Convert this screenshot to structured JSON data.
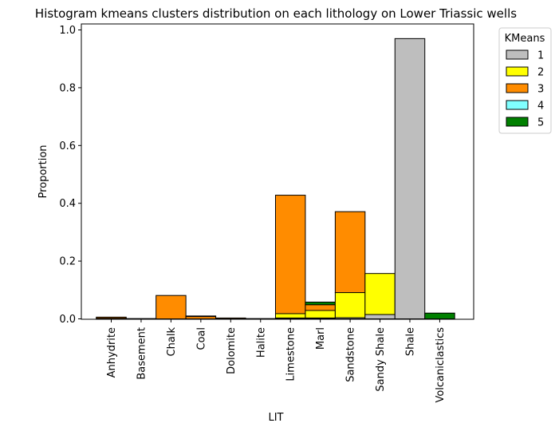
{
  "chart_data": {
    "type": "bar",
    "stacked": true,
    "title": "Histogram kmeans clusters distribution on each lithology on Lower Triassic wells",
    "xlabel": "LIT",
    "ylabel": "Proportion",
    "ylim": [
      0,
      1.02
    ],
    "yticks": [
      "0.0",
      "0.2",
      "0.4",
      "0.6",
      "0.8",
      "1.0"
    ],
    "categories": [
      "Anhydrite",
      "Basement",
      "Chalk",
      "Coal",
      "Dolomite",
      "Halite",
      "Limestone",
      "Marl",
      "Sandstone",
      "Sandy Shale",
      "Shale",
      "Volcaniclastics"
    ],
    "legend": {
      "title": "KMeans",
      "placement": "outside-top-right"
    },
    "series": [
      {
        "name": "1",
        "color": "#bebebe",
        "values": [
          0,
          0,
          0,
          0,
          0,
          0,
          0.003,
          0.003,
          0.004,
          0.015,
          0.97,
          0
        ]
      },
      {
        "name": "2",
        "color": "#ffff00",
        "values": [
          0.002,
          0,
          0,
          0,
          0,
          0,
          0.015,
          0.026,
          0.087,
          0.142,
          0,
          0
        ]
      },
      {
        "name": "3",
        "color": "#ff8c00",
        "values": [
          0.004,
          0.001,
          0.081,
          0.008,
          0.003,
          0.001,
          0.41,
          0.02,
          0.28,
          0,
          0,
          0
        ]
      },
      {
        "name": "4",
        "color": "#80ffff",
        "values": [
          0,
          0,
          0,
          0,
          0,
          0,
          0,
          0,
          0,
          0,
          0,
          0
        ]
      },
      {
        "name": "5",
        "color": "#008000",
        "values": [
          0,
          0,
          0,
          0.002,
          0,
          0,
          0,
          0.009,
          0,
          0,
          0,
          0.02
        ]
      }
    ]
  }
}
